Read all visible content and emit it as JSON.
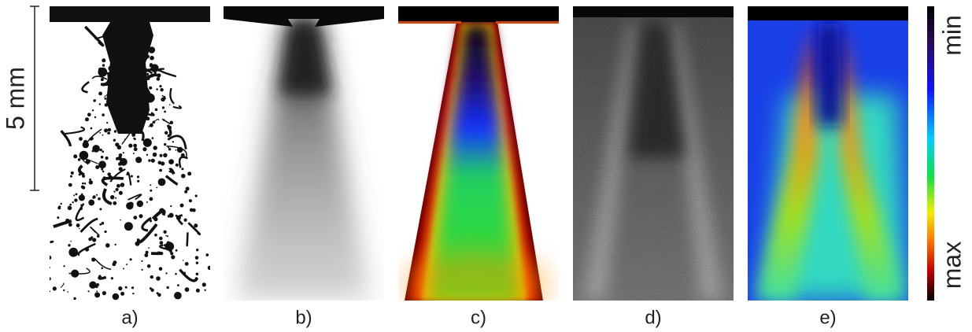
{
  "scale_bar": {
    "label": "5 mm"
  },
  "panels": [
    {
      "label": "a)"
    },
    {
      "label": "b)"
    },
    {
      "label": "c)"
    },
    {
      "label": "d)"
    },
    {
      "label": "e)"
    }
  ],
  "colorbar": {
    "min_label": "min",
    "max_label": "max"
  }
}
